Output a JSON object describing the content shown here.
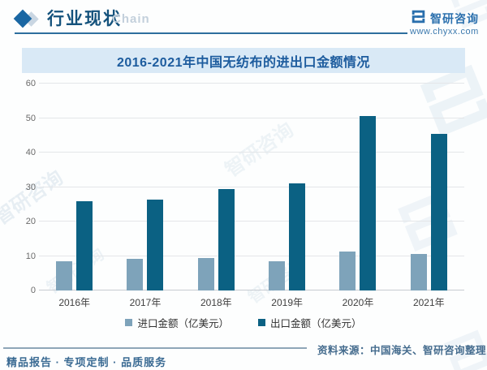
{
  "header": {
    "title": "行业现状",
    "watermark_text": "Chain",
    "brand_name": "智研咨询",
    "brand_url": "www.chyxx.com"
  },
  "chart_data": {
    "type": "bar",
    "title": "2016-2021年中国无纺布的进出口金额情况",
    "categories": [
      "2016年",
      "2017年",
      "2018年",
      "2019年",
      "2020年",
      "2021年"
    ],
    "series": [
      {
        "name": "进口金额（亿美元）",
        "color": "#7ea3ba",
        "values": [
          8.4,
          9.1,
          9.3,
          8.4,
          11.2,
          10.7
        ]
      },
      {
        "name": "出口金额（亿美元）",
        "color": "#0b6183",
        "values": [
          25.8,
          26.3,
          29.4,
          31.0,
          50.7,
          45.5
        ]
      }
    ],
    "xlabel": "",
    "ylabel": "",
    "ylim": [
      0,
      60
    ],
    "ytick_step": 10,
    "grid": true,
    "legend_position": "bottom"
  },
  "footer": {
    "source": "资料来源：中国海关、智研咨询整理",
    "tagline": "精品报告 · 专项定制 · 品质服务"
  },
  "colors": {
    "accent_blue": "#1a67a3",
    "title_band_bg": "#d9e9f6",
    "title_text": "#1d5c9e",
    "import_bar": "#7ea3ba",
    "export_bar": "#0b6183",
    "header_line": "#2d6e9e"
  },
  "watermark_brand": "智研咨询"
}
